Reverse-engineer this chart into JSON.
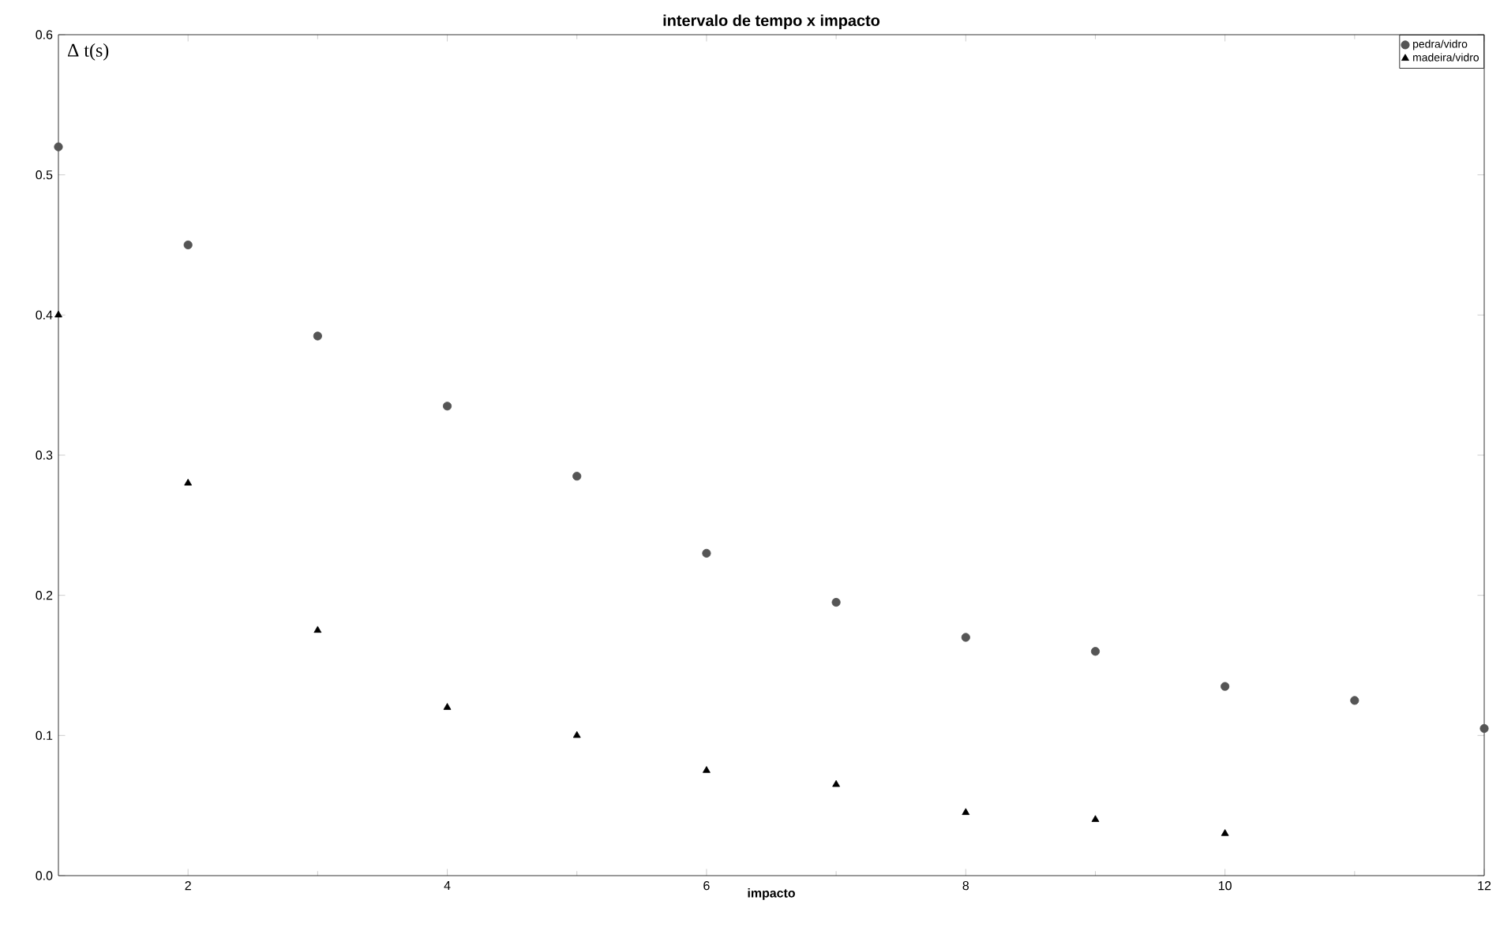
{
  "chart_data": {
    "type": "scatter",
    "title": "intervalo de tempo x impacto",
    "xlabel": "impacto",
    "ylabel": "Δ t(s)",
    "xlim": [
      1,
      12
    ],
    "ylim": [
      0,
      0.6
    ],
    "xticks": [
      2,
      4,
      6,
      8,
      10,
      12
    ],
    "yticks": [
      {
        "value": 0,
        "label": "0.0"
      },
      {
        "value": 0.1,
        "label": "0.1"
      },
      {
        "value": 0.2,
        "label": "0.2"
      },
      {
        "value": 0.3,
        "label": "0.3"
      },
      {
        "value": 0.4,
        "label": "0.4"
      },
      {
        "value": 0.5,
        "label": "0.5"
      },
      {
        "value": 0.6,
        "label": "0.6"
      }
    ],
    "grid": false,
    "legend": "top right",
    "series": [
      {
        "name": "pedra/vidro",
        "color": "#555555",
        "marker": "circle",
        "x": [
          1,
          2,
          3,
          4,
          5,
          6,
          7,
          8,
          9,
          10,
          11,
          12
        ],
        "values": [
          0.52,
          0.45,
          0.385,
          0.335,
          0.285,
          0.23,
          0.195,
          0.17,
          0.16,
          0.135,
          0.125,
          0.105
        ]
      },
      {
        "name": "madeira/vidro",
        "color": "#000000",
        "marker": "triangle",
        "x": [
          1,
          2,
          3,
          4,
          5,
          6,
          7,
          8,
          9,
          10
        ],
        "values": [
          0.4,
          0.28,
          0.175,
          0.12,
          0.1,
          0.075,
          0.065,
          0.045,
          0.04,
          0.03
        ]
      }
    ]
  }
}
